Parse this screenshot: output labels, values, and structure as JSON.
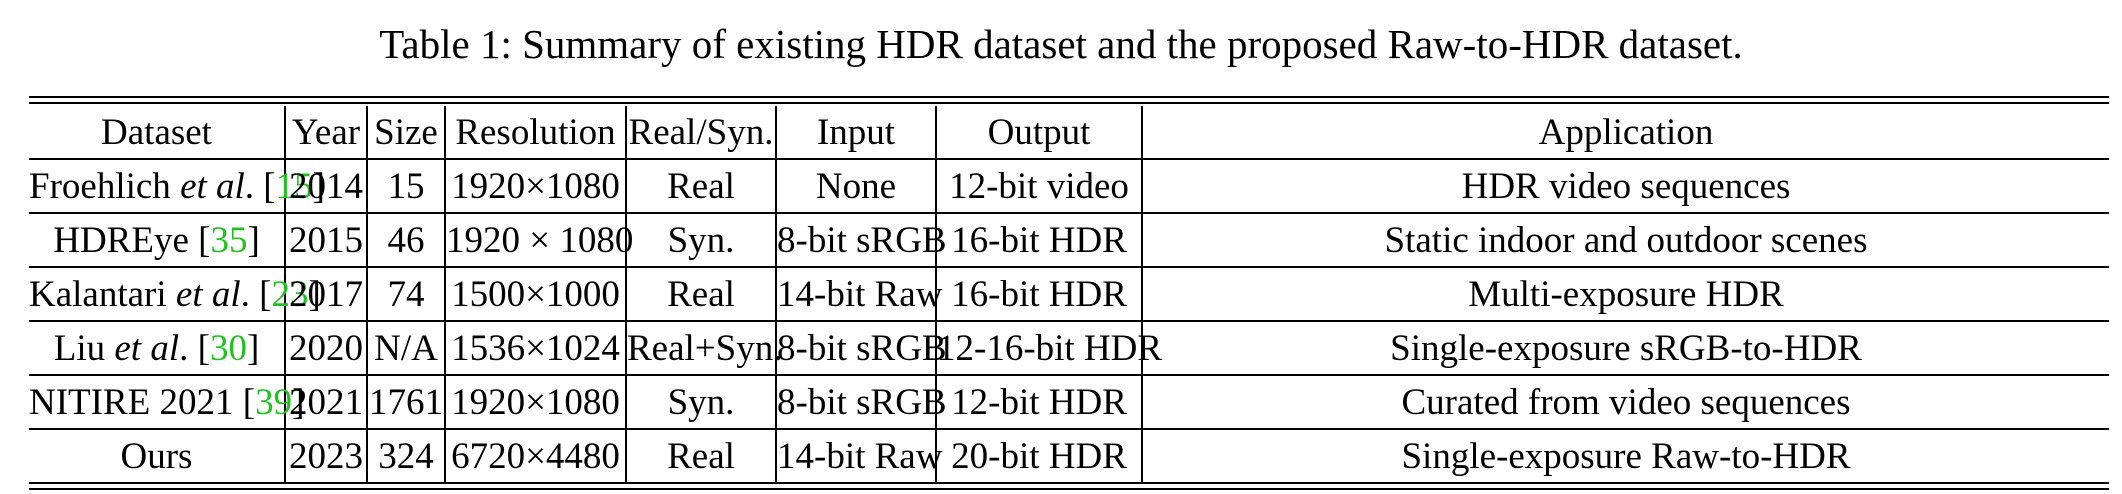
{
  "caption": "Table 1: Summary of existing HDR dataset and the proposed Raw-to-HDR dataset.",
  "headers": [
    "Dataset",
    "Year",
    "Size",
    "Resolution",
    "Real/Syn.",
    "Input",
    "Output",
    "Application"
  ],
  "rows": [
    {
      "name_pre": "Froehlich ",
      "name_it": "et al",
      "name_post": ". [",
      "cite": "15",
      "close": "]",
      "year": "2014",
      "size": "15",
      "resolution": "1920×1080",
      "type": "Real",
      "input": "None",
      "output": "12-bit video",
      "application": "HDR video sequences"
    },
    {
      "name_pre": "HDREye [",
      "name_it": "",
      "name_post": "",
      "cite": "35",
      "close": "]",
      "year": "2015",
      "size": "46",
      "resolution": "1920 × 1080",
      "type": "Syn.",
      "input": "8-bit sRGB",
      "output": "16-bit HDR",
      "application": "Static indoor and outdoor scenes"
    },
    {
      "name_pre": "Kalantari ",
      "name_it": "et al",
      "name_post": ". [",
      "cite": "23",
      "close": "]",
      "year": "2017",
      "size": "74",
      "resolution": "1500×1000",
      "type": "Real",
      "input": "14-bit Raw",
      "output": "16-bit HDR",
      "application": "Multi-exposure HDR"
    },
    {
      "name_pre": "Liu ",
      "name_it": "et al",
      "name_post": ". [",
      "cite": "30",
      "close": "]",
      "year": "2020",
      "size": "N/A",
      "resolution": "1536×1024",
      "type": "Real+Syn.",
      "input": "8-bit sRGB",
      "output": "12-16-bit HDR",
      "application": "Single-exposure sRGB-to-HDR"
    },
    {
      "name_pre": "NITIRE 2021 [",
      "name_it": "",
      "name_post": "",
      "cite": "39",
      "close": "]",
      "year": "2021",
      "size": "1761",
      "resolution": "1920×1080",
      "type": "Syn.",
      "input": "8-bit sRGB",
      "output": "12-bit HDR",
      "application": "Curated from video sequences"
    },
    {
      "name_pre": "Ours",
      "name_it": "",
      "name_post": "",
      "cite": "",
      "close": "",
      "year": "2023",
      "size": "324",
      "resolution": "6720×4480",
      "type": "Real",
      "input": "14-bit Raw",
      "output": "20-bit HDR",
      "application": "Single-exposure Raw-to-HDR"
    }
  ]
}
